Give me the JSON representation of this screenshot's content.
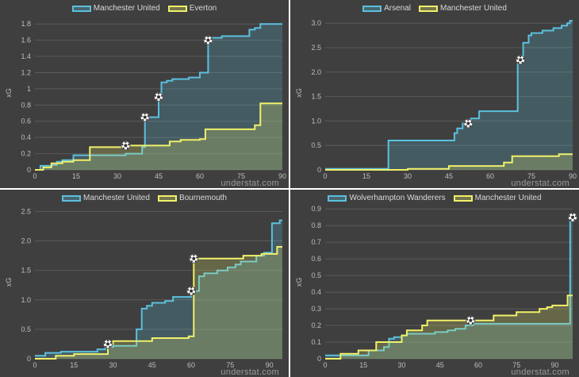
{
  "watermark": "understat.com",
  "colors": {
    "home": "#5bc0de",
    "away": "#f0f06a",
    "background": "#3f3f3f",
    "gridline": "#5a5a5a",
    "text": "#bdbdbd",
    "goal_icon": "#ffffff"
  },
  "goal_icon": "soccer-ball-icon",
  "chart_data": [
    {
      "type": "line",
      "step": true,
      "legend": [
        "Manchester United",
        "Everton"
      ],
      "ylabel": "xG",
      "xlabel": "",
      "xlim": [
        0,
        90
      ],
      "ylim": [
        0,
        1.9
      ],
      "xticks": [
        "0",
        "15",
        "30",
        "45",
        "60",
        "75",
        "90"
      ],
      "yticks": [
        "0",
        "0.2",
        "0.4",
        "0.6",
        "0.8",
        "1",
        "1.2",
        "1.4",
        "1.6",
        "1.8"
      ],
      "series": [
        {
          "name": "Manchester United",
          "x": [
            0,
            2,
            6,
            8,
            10,
            14,
            33,
            39,
            40,
            45,
            46,
            48,
            50,
            56,
            60,
            63,
            64,
            68,
            78,
            80,
            82,
            90
          ],
          "y": [
            0,
            0.05,
            0.06,
            0.1,
            0.12,
            0.18,
            0.2,
            0.28,
            0.65,
            0.9,
            1.08,
            1.1,
            1.12,
            1.14,
            1.2,
            1.6,
            1.63,
            1.65,
            1.73,
            1.75,
            1.8,
            1.8
          ],
          "goals": [
            40,
            45,
            63
          ]
        },
        {
          "name": "Everton",
          "x": [
            0,
            3,
            6,
            10,
            14,
            20,
            30,
            33,
            40,
            49,
            53,
            60,
            62,
            80,
            82,
            90
          ],
          "y": [
            0,
            0.03,
            0.08,
            0.1,
            0.12,
            0.28,
            0.28,
            0.3,
            0.3,
            0.35,
            0.37,
            0.38,
            0.5,
            0.55,
            0.82,
            0.82
          ],
          "goals": [
            33
          ]
        }
      ]
    },
    {
      "type": "line",
      "step": true,
      "legend": [
        "Arsenal",
        "Manchester United"
      ],
      "ylabel": "xG",
      "xlabel": "",
      "xlim": [
        0,
        90
      ],
      "ylim": [
        0,
        3.15
      ],
      "xticks": [
        "0",
        "15",
        "30",
        "45",
        "60",
        "75",
        "90"
      ],
      "yticks": [
        "0",
        "0.5",
        "1.0",
        "1.5",
        "2.0",
        "2.5",
        "3.0"
      ],
      "series": [
        {
          "name": "Arsenal",
          "x": [
            0,
            23,
            47,
            48,
            50,
            53,
            56,
            70,
            72,
            74,
            75,
            77,
            79,
            83,
            86,
            88,
            89,
            90
          ],
          "y": [
            0.02,
            0.6,
            0.75,
            0.85,
            0.95,
            1.05,
            1.2,
            2.25,
            2.6,
            2.75,
            2.8,
            2.8,
            2.85,
            2.9,
            2.95,
            3.0,
            3.05,
            3.05
          ],
          "goals": [
            52,
            71
          ]
        },
        {
          "name": "Manchester United",
          "x": [
            0,
            30,
            45,
            65,
            68,
            85,
            90
          ],
          "y": [
            0,
            0.02,
            0.08,
            0.15,
            0.28,
            0.32,
            0.32
          ],
          "goals": []
        }
      ]
    },
    {
      "type": "line",
      "step": true,
      "legend": [
        "Manchester United",
        "Bournemouth"
      ],
      "ylabel": "xG",
      "xlabel": "",
      "xlim": [
        0,
        95
      ],
      "ylim": [
        0,
        2.6
      ],
      "xticks": [
        "0",
        "15",
        "30",
        "45",
        "60",
        "75",
        "90"
      ],
      "yticks": [
        "0",
        "0.5",
        "1.0",
        "1.5",
        "2.0",
        "2.5"
      ],
      "series": [
        {
          "name": "Manchester United",
          "x": [
            0,
            4,
            10,
            24,
            27,
            30,
            39,
            41,
            43,
            45,
            50,
            53,
            60,
            63,
            65,
            70,
            74,
            77,
            79,
            85,
            88,
            91,
            94,
            95
          ],
          "y": [
            0.05,
            0.1,
            0.12,
            0.16,
            0.2,
            0.22,
            0.5,
            0.85,
            0.9,
            0.95,
            0.98,
            1.05,
            1.15,
            1.4,
            1.45,
            1.5,
            1.55,
            1.6,
            1.65,
            1.75,
            1.8,
            2.3,
            2.35,
            2.35
          ],
          "goals": [
            60
          ]
        },
        {
          "name": "Bournemouth",
          "x": [
            0,
            8,
            15,
            28,
            30,
            45,
            59,
            61,
            80,
            87,
            93,
            95
          ],
          "y": [
            0,
            0.05,
            0.08,
            0.25,
            0.3,
            0.35,
            0.38,
            1.7,
            1.75,
            1.78,
            1.9,
            1.9
          ],
          "goals": [
            28,
            61
          ]
        }
      ]
    },
    {
      "type": "line",
      "step": true,
      "legend": [
        "Wolverhampton Wanderers",
        "Manchester United"
      ],
      "ylabel": "xG",
      "xlabel": "",
      "xlim": [
        0,
        97
      ],
      "ylim": [
        0,
        0.92
      ],
      "xticks": [
        "0",
        "15",
        "30",
        "45",
        "60",
        "75",
        "90"
      ],
      "yticks": [
        "0",
        "0.1",
        "0.2",
        "0.3",
        "0.4",
        "0.5",
        "0.6",
        "0.7",
        "0.8",
        "0.9"
      ],
      "series": [
        {
          "name": "Wolverhampton Wanderers",
          "x": [
            0,
            17,
            23,
            25,
            27,
            30,
            32,
            37,
            43,
            48,
            51,
            55,
            58,
            61,
            96,
            97
          ],
          "y": [
            0.02,
            0.05,
            0.07,
            0.12,
            0.13,
            0.14,
            0.15,
            0.15,
            0.16,
            0.17,
            0.18,
            0.2,
            0.21,
            0.21,
            0.85,
            0.85
          ],
          "goals": [
            97
          ]
        },
        {
          "name": "Manchester United",
          "x": [
            0,
            6,
            13,
            20,
            30,
            32,
            38,
            40,
            47,
            56,
            66,
            75,
            84,
            87,
            89,
            95,
            97
          ],
          "y": [
            0,
            0.03,
            0.05,
            0.1,
            0.14,
            0.17,
            0.2,
            0.23,
            0.23,
            0.23,
            0.26,
            0.28,
            0.3,
            0.31,
            0.32,
            0.38,
            0.38
          ],
          "goals": [
            57
          ]
        }
      ]
    }
  ]
}
